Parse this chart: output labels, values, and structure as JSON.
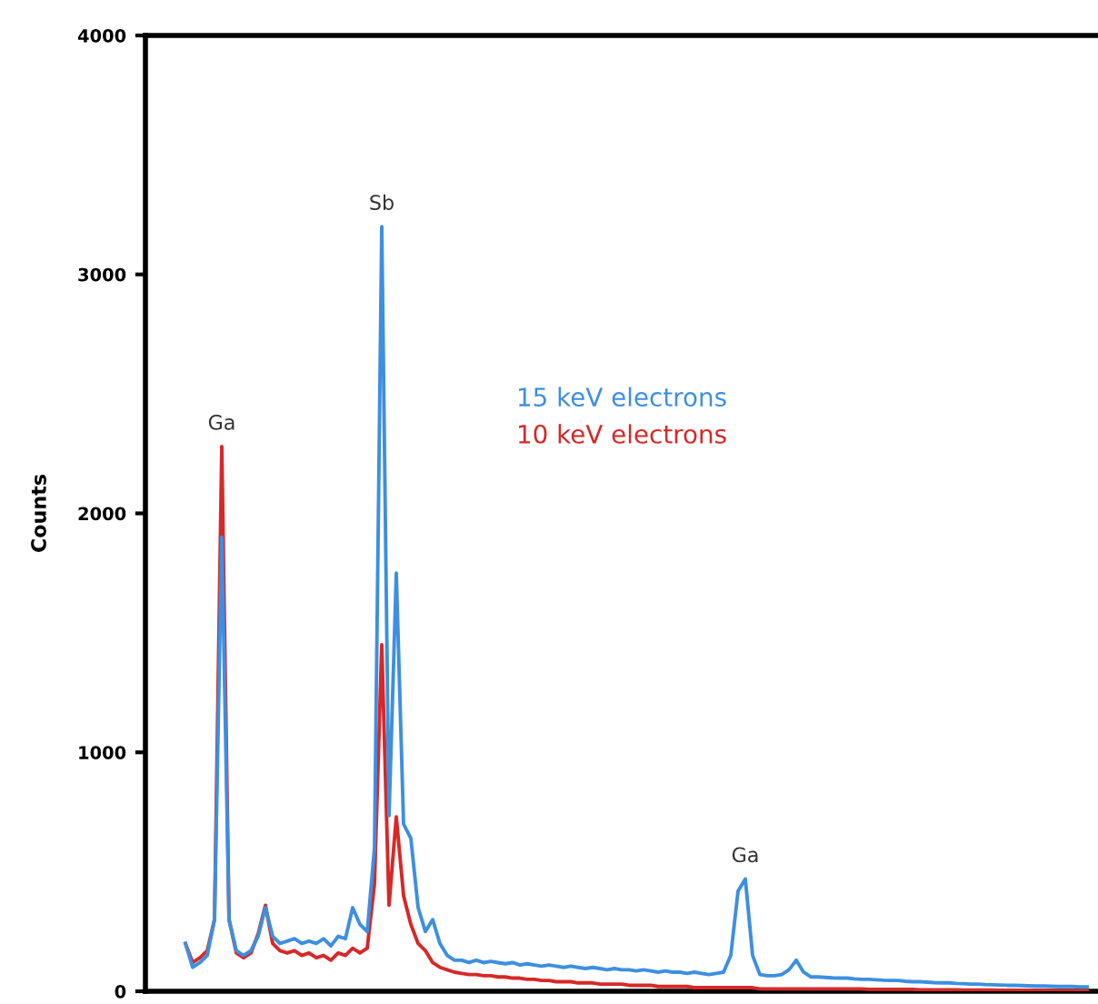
{
  "chart_data": {
    "type": "line",
    "ylabel": "Counts",
    "categories": [
      null,
      null,
      null,
      null,
      null,
      null,
      null,
      null,
      null,
      null,
      null,
      null,
      null,
      null,
      null,
      null,
      null,
      null,
      null,
      null,
      null,
      null,
      null,
      null,
      null,
      null,
      null,
      null,
      null,
      null,
      null,
      null,
      null,
      null,
      null,
      null,
      null,
      null,
      null,
      null,
      null,
      null,
      null,
      null,
      null,
      null,
      null,
      null,
      null,
      null,
      null,
      null,
      null,
      null,
      null,
      null,
      null,
      null,
      null,
      null,
      null,
      null,
      null,
      null,
      null,
      null,
      null,
      null,
      null,
      null,
      null,
      null,
      null,
      null,
      null,
      null,
      null,
      null,
      null,
      null,
      null,
      null,
      null,
      null,
      null,
      null,
      null,
      null,
      null,
      null,
      null,
      null,
      null,
      null,
      null,
      null,
      null,
      null,
      null,
      null,
      null,
      null,
      null,
      null,
      null,
      null,
      null,
      null,
      null,
      null,
      null,
      null,
      null,
      null,
      null,
      null,
      null,
      null,
      null,
      null,
      null,
      null,
      null,
      null,
      null
    ],
    "series": [
      {
        "name": "15 keV electrons",
        "color": "#3d8fe0",
        "values": [
          200,
          100,
          120,
          150,
          300,
          1900,
          300,
          170,
          150,
          170,
          230,
          350,
          230,
          200,
          210,
          220,
          200,
          210,
          200,
          220,
          190,
          230,
          220,
          350,
          280,
          250,
          600,
          3200,
          735,
          1750,
          700,
          640,
          350,
          250,
          300,
          200,
          150,
          130,
          130,
          120,
          130,
          120,
          125,
          120,
          115,
          120,
          110,
          115,
          110,
          105,
          110,
          105,
          100,
          105,
          100,
          95,
          100,
          95,
          90,
          95,
          90,
          90,
          85,
          90,
          85,
          80,
          85,
          80,
          80,
          75,
          80,
          75,
          70,
          75,
          80,
          150,
          420,
          470,
          150,
          70,
          65,
          65,
          70,
          90,
          130,
          80,
          60,
          60,
          58,
          56,
          55,
          55,
          52,
          50,
          50,
          48,
          46,
          45,
          45,
          42,
          40,
          40,
          38,
          36,
          35,
          35,
          33,
          32,
          30,
          30,
          28,
          27,
          26,
          25,
          25,
          24,
          23,
          22,
          22,
          21,
          20,
          20,
          20,
          18,
          18
        ]
      },
      {
        "name": "10 keV electrons",
        "color": "#d62828",
        "values": [
          200,
          120,
          140,
          170,
          300,
          2280,
          300,
          160,
          140,
          160,
          240,
          360,
          200,
          170,
          160,
          170,
          150,
          160,
          140,
          150,
          130,
          160,
          150,
          180,
          160,
          180,
          450,
          1450,
          360,
          730,
          400,
          280,
          200,
          170,
          120,
          100,
          90,
          80,
          75,
          70,
          70,
          65,
          65,
          60,
          60,
          55,
          55,
          50,
          50,
          45,
          45,
          40,
          40,
          40,
          35,
          35,
          35,
          30,
          30,
          30,
          30,
          25,
          25,
          25,
          25,
          20,
          20,
          20,
          20,
          20,
          15,
          15,
          15,
          15,
          15,
          15,
          15,
          15,
          15,
          10,
          10,
          10,
          10,
          10,
          10,
          10,
          10,
          10,
          10,
          10,
          10,
          10,
          10,
          10,
          8,
          8,
          8,
          8,
          8,
          8,
          8,
          6,
          6,
          6,
          6,
          6,
          6,
          5,
          5,
          5,
          5,
          5,
          4,
          4,
          4,
          4,
          4,
          3,
          3,
          3,
          2,
          2,
          2,
          2,
          2
        ]
      }
    ],
    "ylim": [
      0,
      4000
    ],
    "yticks": [
      0,
      1000,
      2000,
      3000,
      4000
    ],
    "grid": false,
    "legend": "center",
    "marker": "none",
    "line_style": "solid",
    "annotations": [
      {
        "text": "Ga",
        "y": 2280
      },
      {
        "text": "Sb",
        "y": 3200
      },
      {
        "text": "Ga",
        "y": 470
      }
    ]
  }
}
